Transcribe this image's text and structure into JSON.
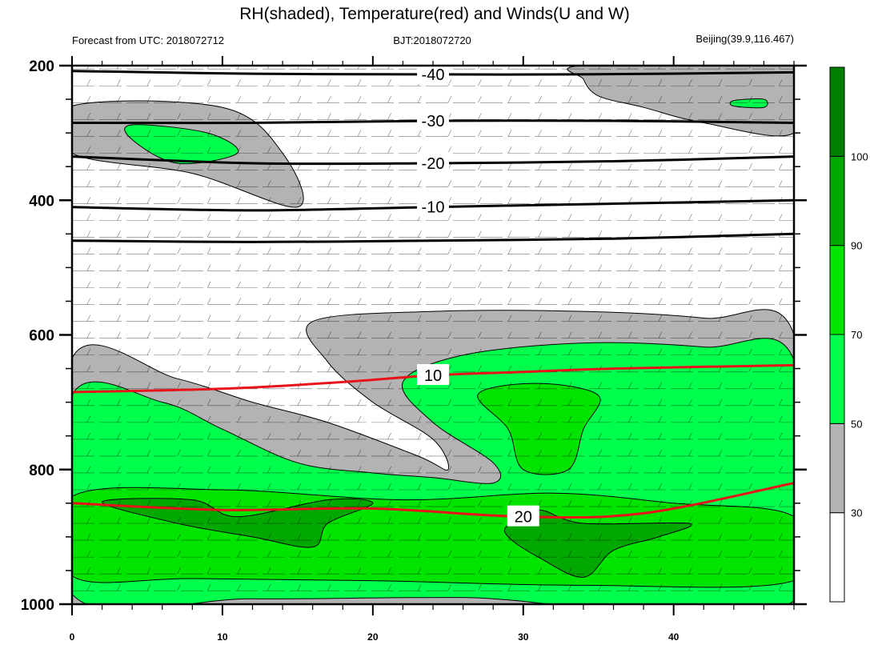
{
  "title": "RH(shaded), Temperature(red) and Winds(U and W)",
  "subtitle_left": "Forecast from UTC: 2018072712",
  "subtitle_center": "BJT:2018072720",
  "subtitle_right": "Beijing(39.9,116.467)",
  "chart_data": {
    "type": "contour",
    "x_ticks": [
      "0",
      "10",
      "20",
      "30",
      "40"
    ],
    "xlim": [
      0,
      48
    ],
    "y_ticks": [
      "200",
      "400",
      "600",
      "800",
      "1000"
    ],
    "ylim": [
      1000,
      200
    ],
    "colorbar": {
      "levels": [
        "30",
        "50",
        "70",
        "90",
        "100"
      ],
      "colors": [
        "#ffffff",
        "#b3b3b3",
        "#00ff4c",
        "#00e400",
        "#00a800",
        "#008000"
      ]
    },
    "series": [
      {
        "name": "RH(shaded)",
        "regions": [
          {
            "level": "50",
            "color": "#b3b3b3",
            "points": [
              [
                0,
                260
              ],
              [
                10,
                262
              ],
              [
                14,
                330
              ],
              [
                15,
                410
              ],
              [
                8,
                360
              ],
              [
                0,
                330
              ]
            ]
          },
          {
            "level": "50",
            "color": "#b3b3b3",
            "points": [
              [
                34,
                200
              ],
              [
                48,
                200
              ],
              [
                48,
                300
              ],
              [
                42,
                285
              ],
              [
                38,
                262
              ],
              [
                35,
                245
              ],
              [
                34,
                220
              ]
            ]
          },
          {
            "level": "50",
            "color": "#b3b3b3",
            "points": [
              [
                16,
                580
              ],
              [
                24,
                565
              ],
              [
                34,
                565
              ],
              [
                42,
                575
              ],
              [
                48,
                600
              ],
              [
                48,
                1000
              ],
              [
                0,
                1000
              ],
              [
                0,
                635
              ],
              [
                7,
                665
              ],
              [
                12,
                700
              ],
              [
                17,
                730
              ],
              [
                23,
                780
              ],
              [
                25,
                800
              ],
              [
                24,
                755
              ],
              [
                20,
                700
              ],
              [
                17,
                640
              ]
            ]
          },
          {
            "level": "70",
            "color": "#00ff4c",
            "points": [
              [
                4,
                288
              ],
              [
                9,
                300
              ],
              [
                11,
                330
              ],
              [
                7,
                345
              ],
              [
                4,
                310
              ]
            ]
          },
          {
            "level": "70",
            "color": "#00ff4c",
            "points": [
              [
                44,
                252
              ],
              [
                46,
                250
              ],
              [
                46,
                262
              ],
              [
                44,
                260
              ]
            ]
          },
          {
            "level": "70",
            "color": "#00ff4c",
            "points": [
              [
                22,
                670
              ],
              [
                26,
                630
              ],
              [
                34,
                612
              ],
              [
                42,
                618
              ],
              [
                48,
                638
              ],
              [
                48,
                995
              ],
              [
                26,
                990
              ],
              [
                12,
                992
              ],
              [
                0,
                985
              ],
              [
                0,
                690
              ],
              [
                6,
                700
              ],
              [
                10,
                740
              ],
              [
                15,
                790
              ],
              [
                20,
                805
              ],
              [
                24,
                812
              ],
              [
                28,
                820
              ],
              [
                28,
                790
              ],
              [
                24,
                730
              ]
            ]
          },
          {
            "level": "90",
            "color": "#00e400",
            "points": [
              [
                27,
                688
              ],
              [
                31,
                672
              ],
              [
                35,
                690
              ],
              [
                34,
                740
              ],
              [
                33,
                800
              ],
              [
                30,
                800
              ],
              [
                29,
                740
              ]
            ]
          },
          {
            "level": "90",
            "color": "#00e400",
            "points": [
              [
                0,
                840
              ],
              [
                10,
                830
              ],
              [
                22,
                845
              ],
              [
                32,
                835
              ],
              [
                40,
                850
              ],
              [
                48,
                870
              ],
              [
                48,
                965
              ],
              [
                34,
                972
              ],
              [
                20,
                965
              ],
              [
                8,
                962
              ],
              [
                0,
                958
              ]
            ]
          },
          {
            "level": "100",
            "color": "#00a800",
            "points": [
              [
                2,
                848
              ],
              [
                8,
                845
              ],
              [
                11,
                870
              ],
              [
                17,
                845
              ],
              [
                20,
                850
              ],
              [
                17,
                880
              ],
              [
                16,
                915
              ],
              [
                12,
                900
              ],
              [
                7,
                880
              ]
            ]
          },
          {
            "level": "100",
            "color": "#00a800",
            "points": [
              [
                29,
                882
              ],
              [
                31,
                860
              ],
              [
                34,
                880
              ],
              [
                41,
                880
              ],
              [
                39,
                900
              ],
              [
                36,
                920
              ],
              [
                34,
                960
              ],
              [
                31,
                930
              ],
              [
                29,
                900
              ]
            ]
          }
        ]
      },
      {
        "name": "Temperature(red)",
        "lines": [
          {
            "label": "-40",
            "points": [
              [
                0,
                208
              ],
              [
                12,
                212
              ],
              [
                24,
                213
              ],
              [
                34,
                213
              ],
              [
                48,
                210
              ]
            ]
          },
          {
            "label": "-30",
            "points": [
              [
                0,
                285
              ],
              [
                12,
                285
              ],
              [
                24,
                282
              ],
              [
                36,
                282
              ],
              [
                48,
                285
              ]
            ]
          },
          {
            "label": "-20",
            "points": [
              [
                0,
                335
              ],
              [
                12,
                345
              ],
              [
                24,
                345
              ],
              [
                36,
                342
              ],
              [
                48,
                335
              ]
            ]
          },
          {
            "label": "-10",
            "points": [
              [
                0,
                410
              ],
              [
                12,
                415
              ],
              [
                24,
                410
              ],
              [
                36,
                405
              ],
              [
                48,
                400
              ]
            ]
          },
          {
            "label": "",
            "points": [
              [
                0,
                460
              ],
              [
                12,
                462
              ],
              [
                24,
                460
              ],
              [
                36,
                457
              ],
              [
                48,
                450
              ]
            ]
          },
          {
            "label": "10",
            "points": [
              [
                0,
                685
              ],
              [
                10,
                680
              ],
              [
                18,
                670
              ],
              [
                24,
                660
              ],
              [
                30,
                655
              ],
              [
                36,
                650
              ],
              [
                48,
                645
              ]
            ]
          },
          {
            "label": "20",
            "points": [
              [
                0,
                850
              ],
              [
                10,
                860
              ],
              [
                20,
                858
              ],
              [
                30,
                870
              ],
              [
                38,
                865
              ],
              [
                48,
                820
              ]
            ]
          }
        ]
      }
    ]
  }
}
